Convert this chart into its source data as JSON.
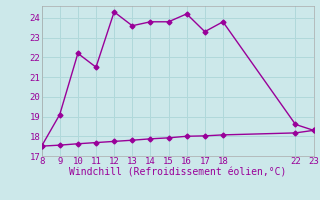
{
  "title": "",
  "xlabel": "Windchill (Refroidissement éolien,°C)",
  "background_color": "#cce8ea",
  "grid_color": "#b0d8da",
  "line_color": "#990099",
  "xlim": [
    8,
    23
  ],
  "ylim": [
    17,
    24.6
  ],
  "xticks": [
    8,
    9,
    10,
    11,
    12,
    13,
    14,
    15,
    16,
    17,
    18,
    22,
    23
  ],
  "yticks": [
    17,
    18,
    19,
    20,
    21,
    22,
    23,
    24
  ],
  "line1_x": [
    8,
    9,
    10,
    11,
    12,
    13,
    14,
    15,
    16,
    17,
    18,
    22,
    23
  ],
  "line1_y": [
    17.5,
    19.1,
    22.2,
    21.5,
    24.3,
    23.6,
    23.8,
    23.8,
    24.2,
    23.3,
    23.8,
    18.6,
    18.3
  ],
  "line2_x": [
    8,
    9,
    10,
    11,
    12,
    13,
    14,
    15,
    16,
    17,
    18,
    22,
    23
  ],
  "line2_y": [
    17.5,
    17.55,
    17.62,
    17.68,
    17.74,
    17.8,
    17.87,
    17.92,
    18.0,
    18.02,
    18.07,
    18.17,
    18.3
  ],
  "marker": "D",
  "markersize": 2.5,
  "linewidth": 1.0,
  "tick_fontsize": 6.5,
  "xlabel_fontsize": 7.0
}
